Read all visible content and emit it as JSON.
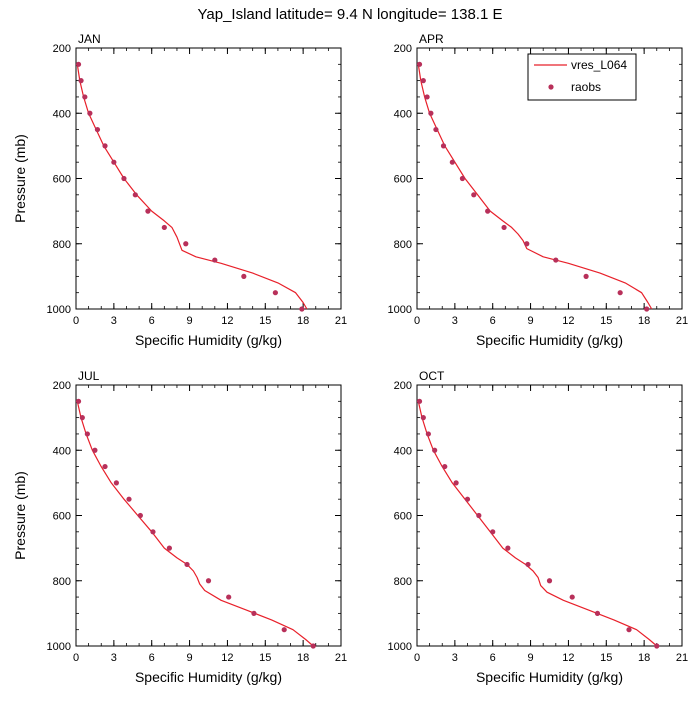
{
  "title": "Yap_Island  latitude= 9.4 N longitude= 138.1 E",
  "legend": {
    "placement": "top-right of APR panel",
    "model_label": "vres_L064",
    "obs_label": "raobs"
  },
  "colors": {
    "model_line": "#e8202a",
    "obs_marker": "#b8305a",
    "axes": "#000000"
  },
  "chart_data": [
    {
      "type": "line",
      "panel": "JAN",
      "xlabel": "Specific Humidity (g/kg)",
      "ylabel": "Pressure (mb)",
      "xlim": [
        0,
        21
      ],
      "ylim": [
        1000,
        200
      ],
      "y_reversed": true,
      "xticks": [
        0,
        3,
        6,
        9,
        12,
        15,
        18,
        21
      ],
      "yticks": [
        200,
        400,
        600,
        800,
        1000
      ],
      "series": [
        {
          "name": "vres_L064",
          "kind": "line",
          "x": [
            0.1,
            0.3,
            0.6,
            1.0,
            1.6,
            2.2,
            3.0,
            3.8,
            4.8,
            6.0,
            7.0,
            7.6,
            8.0,
            8.2,
            8.4,
            9.5,
            11.5,
            14.0,
            16.0,
            17.4,
            18.0,
            18.3
          ],
          "y": [
            250,
            300,
            350,
            400,
            450,
            500,
            550,
            600,
            650,
            700,
            730,
            750,
            780,
            800,
            820,
            840,
            860,
            890,
            920,
            950,
            980,
            1000
          ]
        },
        {
          "name": "raobs",
          "kind": "scatter",
          "x": [
            0.2,
            0.4,
            0.7,
            1.1,
            1.7,
            2.3,
            3.0,
            3.8,
            4.7,
            5.7,
            7.0,
            8.7,
            11.0,
            13.3,
            15.8,
            17.9
          ],
          "y": [
            250,
            300,
            350,
            400,
            450,
            500,
            550,
            600,
            650,
            700,
            750,
            800,
            850,
            900,
            950,
            1000
          ]
        }
      ]
    },
    {
      "type": "line",
      "panel": "APR",
      "xlabel": "Specific Humidity (g/kg)",
      "ylabel": "",
      "xlim": [
        0,
        21
      ],
      "ylim": [
        1000,
        200
      ],
      "y_reversed": true,
      "xticks": [
        0,
        3,
        6,
        9,
        12,
        15,
        18,
        21
      ],
      "yticks": [
        200,
        400,
        600,
        800,
        1000
      ],
      "series": [
        {
          "name": "vres_L064",
          "kind": "line",
          "x": [
            0.1,
            0.3,
            0.6,
            1.0,
            1.6,
            2.2,
            3.0,
            3.8,
            4.8,
            5.8,
            6.8,
            7.5,
            8.0,
            8.4,
            8.7,
            10.0,
            12.0,
            14.5,
            16.5,
            17.8,
            18.3,
            18.6
          ],
          "y": [
            250,
            300,
            350,
            400,
            450,
            500,
            550,
            600,
            650,
            700,
            730,
            750,
            770,
            790,
            815,
            840,
            860,
            890,
            920,
            950,
            980,
            1000
          ]
        },
        {
          "name": "raobs",
          "kind": "scatter",
          "x": [
            0.2,
            0.5,
            0.8,
            1.1,
            1.5,
            2.1,
            2.8,
            3.6,
            4.5,
            5.6,
            6.9,
            8.7,
            11.0,
            13.4,
            16.1,
            18.2
          ],
          "y": [
            250,
            300,
            350,
            400,
            450,
            500,
            550,
            600,
            650,
            700,
            750,
            800,
            850,
            900,
            950,
            1000
          ]
        }
      ]
    },
    {
      "type": "line",
      "panel": "JUL",
      "xlabel": "Specific Humidity (g/kg)",
      "ylabel": "Pressure (mb)",
      "xlim": [
        0,
        21
      ],
      "ylim": [
        1000,
        200
      ],
      "y_reversed": true,
      "xticks": [
        0,
        3,
        6,
        9,
        12,
        15,
        18,
        21
      ],
      "yticks": [
        200,
        400,
        600,
        800,
        1000
      ],
      "series": [
        {
          "name": "vres_L064",
          "kind": "line",
          "x": [
            0.1,
            0.4,
            0.8,
            1.3,
            2.0,
            2.8,
            3.8,
            4.9,
            6.0,
            7.0,
            8.0,
            8.8,
            9.3,
            9.6,
            9.8,
            10.2,
            11.5,
            13.5,
            15.5,
            17.2,
            18.2,
            18.8
          ],
          "y": [
            250,
            300,
            350,
            400,
            450,
            500,
            550,
            600,
            650,
            700,
            730,
            750,
            770,
            790,
            810,
            830,
            860,
            890,
            920,
            950,
            980,
            1000
          ]
        },
        {
          "name": "raobs",
          "kind": "scatter",
          "x": [
            0.2,
            0.5,
            0.9,
            1.5,
            2.3,
            3.2,
            4.2,
            5.1,
            6.1,
            7.4,
            8.8,
            10.5,
            12.1,
            14.1,
            16.5,
            18.8
          ],
          "y": [
            250,
            300,
            350,
            400,
            450,
            500,
            550,
            600,
            650,
            700,
            750,
            800,
            850,
            900,
            950,
            1000
          ]
        }
      ]
    },
    {
      "type": "line",
      "panel": "OCT",
      "xlabel": "Specific Humidity (g/kg)",
      "ylabel": "",
      "xlim": [
        0,
        21
      ],
      "ylim": [
        1000,
        200
      ],
      "y_reversed": true,
      "xticks": [
        0,
        3,
        6,
        9,
        12,
        15,
        18,
        21
      ],
      "yticks": [
        200,
        400,
        600,
        800,
        1000
      ],
      "series": [
        {
          "name": "vres_L064",
          "kind": "line",
          "x": [
            0.1,
            0.4,
            0.8,
            1.3,
            2.0,
            2.8,
            3.8,
            4.8,
            5.8,
            6.8,
            7.8,
            8.6,
            9.2,
            9.6,
            9.8,
            10.3,
            11.6,
            13.6,
            15.6,
            17.4,
            18.4,
            19.0
          ],
          "y": [
            250,
            300,
            350,
            400,
            450,
            500,
            550,
            600,
            650,
            700,
            730,
            750,
            770,
            790,
            815,
            835,
            860,
            890,
            920,
            950,
            980,
            1000
          ]
        },
        {
          "name": "raobs",
          "kind": "scatter",
          "x": [
            0.2,
            0.5,
            0.9,
            1.4,
            2.2,
            3.1,
            4.0,
            4.9,
            6.0,
            7.2,
            8.8,
            10.5,
            12.3,
            14.3,
            16.8,
            19.0
          ],
          "y": [
            250,
            300,
            350,
            400,
            450,
            500,
            550,
            600,
            650,
            700,
            750,
            800,
            850,
            900,
            950,
            1000
          ]
        }
      ]
    }
  ]
}
